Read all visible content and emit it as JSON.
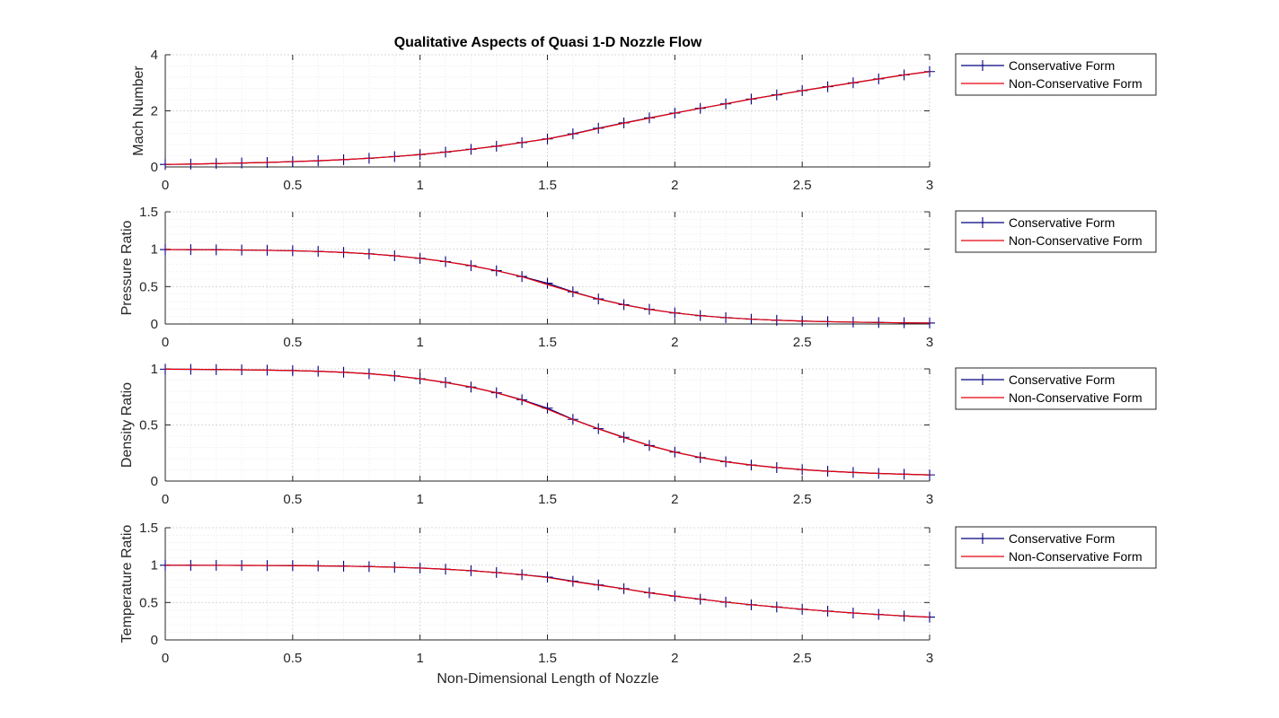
{
  "figure": {
    "title": "Qualitative Aspects of Quasi 1-D Nozzle Flow",
    "xlabel": "Non-Dimensional Length of Nozzle"
  },
  "style": {
    "conservative_color": "#00007f",
    "non_conservative_color": "#e8000b",
    "grid_major_color": "#d9d9d9",
    "grid_minor_color": "#ececec",
    "axis_color": "#262626"
  },
  "chart_data": [
    {
      "type": "line",
      "ylabel": "Mach Number",
      "xlim": [
        0,
        3
      ],
      "ylim": [
        0,
        4
      ],
      "xticks": [
        "0",
        "0.5",
        "1",
        "1.5",
        "2",
        "2.5",
        "3"
      ],
      "yticks": [
        "0",
        "2",
        "4"
      ],
      "grid": true,
      "legend": {
        "position": "outside-right",
        "entries": [
          "Conservative Form",
          "Non-Conservative Form"
        ]
      },
      "x": [
        0,
        0.1,
        0.2,
        0.3,
        0.4,
        0.5,
        0.6,
        0.7,
        0.8,
        0.9,
        1.0,
        1.1,
        1.2,
        1.3,
        1.4,
        1.5,
        1.6,
        1.7,
        1.8,
        1.9,
        2.0,
        2.1,
        2.2,
        2.3,
        2.4,
        2.5,
        2.6,
        2.7,
        2.8,
        2.9,
        3.0
      ],
      "series": [
        {
          "name": "Conservative Form",
          "marker": "+",
          "values": [
            0.09,
            0.1,
            0.12,
            0.14,
            0.16,
            0.19,
            0.22,
            0.26,
            0.31,
            0.37,
            0.44,
            0.53,
            0.63,
            0.74,
            0.87,
            1.0,
            1.18,
            1.38,
            1.57,
            1.75,
            1.92,
            2.09,
            2.25,
            2.42,
            2.57,
            2.72,
            2.86,
            3.0,
            3.14,
            3.28,
            3.4
          ]
        },
        {
          "name": "Non-Conservative Form",
          "marker": "none",
          "values": [
            0.09,
            0.1,
            0.12,
            0.14,
            0.16,
            0.19,
            0.22,
            0.26,
            0.31,
            0.37,
            0.44,
            0.53,
            0.63,
            0.74,
            0.87,
            1.0,
            1.17,
            1.37,
            1.56,
            1.74,
            1.92,
            2.09,
            2.25,
            2.42,
            2.57,
            2.72,
            2.86,
            3.0,
            3.14,
            3.28,
            3.4
          ]
        }
      ]
    },
    {
      "type": "line",
      "ylabel": "Pressure Ratio",
      "xlim": [
        0,
        3
      ],
      "ylim": [
        0,
        1.5
      ],
      "xticks": [
        "0",
        "0.5",
        "1",
        "1.5",
        "2",
        "2.5",
        "3"
      ],
      "yticks": [
        "0",
        "0.5",
        "1",
        "1.5"
      ],
      "grid": true,
      "legend": {
        "position": "outside-right",
        "entries": [
          "Conservative Form",
          "Non-Conservative Form"
        ]
      },
      "x": [
        0,
        0.1,
        0.2,
        0.3,
        0.4,
        0.5,
        0.6,
        0.7,
        0.8,
        0.9,
        1.0,
        1.1,
        1.2,
        1.3,
        1.4,
        1.5,
        1.6,
        1.7,
        1.8,
        1.9,
        2.0,
        2.1,
        2.2,
        2.3,
        2.4,
        2.5,
        2.6,
        2.7,
        2.8,
        2.9,
        3.0
      ],
      "series": [
        {
          "name": "Conservative Form",
          "marker": "+",
          "values": [
            0.995,
            0.994,
            0.992,
            0.989,
            0.985,
            0.979,
            0.97,
            0.957,
            0.938,
            0.912,
            0.878,
            0.834,
            0.78,
            0.713,
            0.635,
            0.545,
            0.43,
            0.335,
            0.258,
            0.196,
            0.148,
            0.112,
            0.085,
            0.065,
            0.05,
            0.039,
            0.031,
            0.025,
            0.02,
            0.016,
            0.013
          ]
        },
        {
          "name": "Non-Conservative Form",
          "marker": "none",
          "values": [
            0.995,
            0.994,
            0.992,
            0.989,
            0.985,
            0.979,
            0.97,
            0.957,
            0.938,
            0.912,
            0.878,
            0.834,
            0.78,
            0.713,
            0.632,
            0.528,
            0.425,
            0.333,
            0.256,
            0.195,
            0.148,
            0.112,
            0.085,
            0.065,
            0.05,
            0.039,
            0.031,
            0.025,
            0.02,
            0.016,
            0.013
          ]
        }
      ]
    },
    {
      "type": "line",
      "ylabel": "Density Ratio",
      "xlim": [
        0,
        3
      ],
      "ylim": [
        0,
        1
      ],
      "xticks": [
        "0",
        "0.5",
        "1",
        "1.5",
        "2",
        "2.5",
        "3"
      ],
      "yticks": [
        "0",
        "0.5",
        "1"
      ],
      "grid": true,
      "legend": {
        "position": "outside-right",
        "entries": [
          "Conservative Form",
          "Non-Conservative Form"
        ]
      },
      "x": [
        0,
        0.1,
        0.2,
        0.3,
        0.4,
        0.5,
        0.6,
        0.7,
        0.8,
        0.9,
        1.0,
        1.1,
        1.2,
        1.3,
        1.4,
        1.5,
        1.6,
        1.7,
        1.8,
        1.9,
        2.0,
        2.1,
        2.2,
        2.3,
        2.4,
        2.5,
        2.6,
        2.7,
        2.8,
        2.9,
        3.0
      ],
      "series": [
        {
          "name": "Conservative Form",
          "marker": "+",
          "values": [
            0.997,
            0.996,
            0.994,
            0.992,
            0.989,
            0.985,
            0.979,
            0.97,
            0.957,
            0.938,
            0.912,
            0.879,
            0.838,
            0.787,
            0.725,
            0.65,
            0.55,
            0.467,
            0.39,
            0.317,
            0.258,
            0.21,
            0.172,
            0.143,
            0.12,
            0.102,
            0.088,
            0.077,
            0.068,
            0.061,
            0.055
          ]
        },
        {
          "name": "Non-Conservative Form",
          "marker": "none",
          "values": [
            0.997,
            0.996,
            0.994,
            0.992,
            0.989,
            0.985,
            0.979,
            0.97,
            0.957,
            0.938,
            0.912,
            0.879,
            0.838,
            0.787,
            0.722,
            0.64,
            0.548,
            0.465,
            0.388,
            0.316,
            0.258,
            0.21,
            0.172,
            0.143,
            0.12,
            0.102,
            0.088,
            0.077,
            0.068,
            0.061,
            0.055
          ]
        }
      ]
    },
    {
      "type": "line",
      "ylabel": "Temperature Ratio",
      "xlim": [
        0,
        3
      ],
      "ylim": [
        0,
        1.5
      ],
      "xticks": [
        "0",
        "0.5",
        "1",
        "1.5",
        "2",
        "2.5",
        "3"
      ],
      "yticks": [
        "0",
        "0.5",
        "1",
        "1.5"
      ],
      "grid": true,
      "legend": {
        "position": "outside-right",
        "entries": [
          "Conservative Form",
          "Non-Conservative Form"
        ]
      },
      "x": [
        0,
        0.1,
        0.2,
        0.3,
        0.4,
        0.5,
        0.6,
        0.7,
        0.8,
        0.9,
        1.0,
        1.1,
        1.2,
        1.3,
        1.4,
        1.5,
        1.6,
        1.7,
        1.8,
        1.9,
        2.0,
        2.1,
        2.2,
        2.3,
        2.4,
        2.5,
        2.6,
        2.7,
        2.8,
        2.9,
        3.0
      ],
      "series": [
        {
          "name": "Conservative Form",
          "marker": "+",
          "values": [
            0.998,
            0.998,
            0.997,
            0.996,
            0.995,
            0.993,
            0.99,
            0.986,
            0.98,
            0.972,
            0.961,
            0.945,
            0.926,
            0.901,
            0.872,
            0.84,
            0.785,
            0.735,
            0.685,
            0.63,
            0.585,
            0.545,
            0.505,
            0.47,
            0.44,
            0.41,
            0.385,
            0.36,
            0.34,
            0.32,
            0.305
          ]
        },
        {
          "name": "Non-Conservative Form",
          "marker": "none",
          "values": [
            0.998,
            0.998,
            0.997,
            0.996,
            0.995,
            0.993,
            0.99,
            0.986,
            0.98,
            0.972,
            0.961,
            0.945,
            0.926,
            0.901,
            0.872,
            0.835,
            0.78,
            0.732,
            0.683,
            0.63,
            0.585,
            0.545,
            0.505,
            0.47,
            0.44,
            0.41,
            0.385,
            0.36,
            0.34,
            0.32,
            0.305
          ]
        }
      ]
    }
  ]
}
